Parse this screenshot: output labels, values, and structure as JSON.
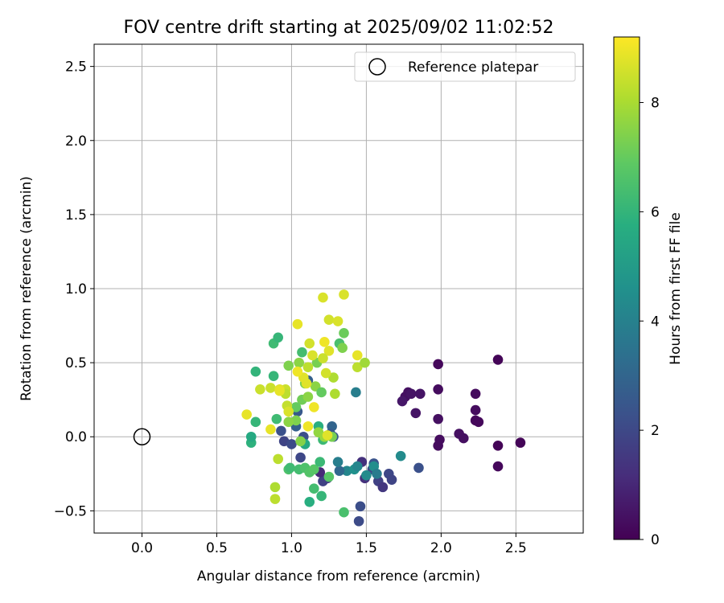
{
  "chart_data": {
    "type": "scatter",
    "title": "FOV centre drift starting at 2025/09/02 11:02:52",
    "xlabel": "Angular distance from reference (arcmin)",
    "ylabel": "Rotation from reference (arcmin)",
    "xlim": [
      -0.32,
      2.95
    ],
    "ylim": [
      -0.65,
      2.65
    ],
    "xticks": [
      "0.0",
      "0.5",
      "1.0",
      "1.5",
      "2.0",
      "2.5"
    ],
    "xtick_values": [
      0.0,
      0.5,
      1.0,
      1.5,
      2.0,
      2.5
    ],
    "yticks": [
      "−0.5",
      "0.0",
      "0.5",
      "1.0",
      "1.5",
      "2.0",
      "2.5"
    ],
    "ytick_values": [
      -0.5,
      0.0,
      0.5,
      1.0,
      1.5,
      2.0,
      2.5
    ],
    "grid": true,
    "legend": {
      "label": "Reference platepar",
      "placement": "top-right"
    },
    "reference_point": {
      "x": 0.0,
      "y": 0.0
    },
    "colorbar": {
      "label": "Hours from first FF file",
      "colormap": "viridis",
      "range": [
        0,
        9.2
      ],
      "ticks": [
        "0",
        "2",
        "4",
        "6",
        "8"
      ],
      "tick_values": [
        0,
        2,
        4,
        6,
        8
      ]
    },
    "points": [
      {
        "x": 2.38,
        "y": 0.52,
        "h": 0.1
      },
      {
        "x": 1.98,
        "y": 0.49,
        "h": 0.2
      },
      {
        "x": 1.98,
        "y": 0.32,
        "h": 0.3
      },
      {
        "x": 2.23,
        "y": 0.29,
        "h": 0.3
      },
      {
        "x": 1.78,
        "y": 0.3,
        "h": 0.4
      },
      {
        "x": 1.76,
        "y": 0.27,
        "h": 0.4
      },
      {
        "x": 1.8,
        "y": 0.29,
        "h": 0.5
      },
      {
        "x": 1.86,
        "y": 0.29,
        "h": 0.5
      },
      {
        "x": 1.74,
        "y": 0.24,
        "h": 0.6
      },
      {
        "x": 1.83,
        "y": 0.16,
        "h": 0.5
      },
      {
        "x": 2.23,
        "y": 0.18,
        "h": 0.3
      },
      {
        "x": 1.98,
        "y": 0.12,
        "h": 0.4
      },
      {
        "x": 2.23,
        "y": 0.11,
        "h": 0.2
      },
      {
        "x": 2.25,
        "y": 0.1,
        "h": 0.2
      },
      {
        "x": 2.12,
        "y": 0.02,
        "h": 0.4
      },
      {
        "x": 2.15,
        "y": -0.01,
        "h": 0.4
      },
      {
        "x": 1.99,
        "y": -0.02,
        "h": 0.3
      },
      {
        "x": 1.98,
        "y": -0.06,
        "h": 0.3
      },
      {
        "x": 2.38,
        "y": -0.06,
        "h": 0.1
      },
      {
        "x": 2.53,
        "y": -0.04,
        "h": 0.1
      },
      {
        "x": 2.38,
        "y": -0.2,
        "h": 0.2
      },
      {
        "x": 1.85,
        "y": -0.21,
        "h": 2.3
      },
      {
        "x": 1.65,
        "y": -0.25,
        "h": 2.0
      },
      {
        "x": 1.67,
        "y": -0.29,
        "h": 1.9
      },
      {
        "x": 1.58,
        "y": -0.3,
        "h": 1.8
      },
      {
        "x": 1.61,
        "y": -0.34,
        "h": 1.5
      },
      {
        "x": 1.55,
        "y": -0.18,
        "h": 2.4
      },
      {
        "x": 1.47,
        "y": -0.17,
        "h": 1.3
      },
      {
        "x": 1.49,
        "y": -0.28,
        "h": 1.3
      },
      {
        "x": 1.54,
        "y": -0.22,
        "h": 2.1
      },
      {
        "x": 1.46,
        "y": -0.47,
        "h": 2.2
      },
      {
        "x": 1.45,
        "y": -0.57,
        "h": 2.1
      },
      {
        "x": 1.37,
        "y": -0.23,
        "h": 4.2
      },
      {
        "x": 1.32,
        "y": -0.23,
        "h": 3.1
      },
      {
        "x": 1.31,
        "y": -0.17,
        "h": 3.9
      },
      {
        "x": 1.42,
        "y": -0.22,
        "h": 4.6
      },
      {
        "x": 1.44,
        "y": -0.2,
        "h": 4.2
      },
      {
        "x": 1.5,
        "y": -0.26,
        "h": 4.4
      },
      {
        "x": 1.55,
        "y": -0.2,
        "h": 4.5
      },
      {
        "x": 1.57,
        "y": -0.25,
        "h": 3.8
      },
      {
        "x": 1.73,
        "y": -0.13,
        "h": 4.4
      },
      {
        "x": 1.24,
        "y": -0.28,
        "h": 1.6
      },
      {
        "x": 1.21,
        "y": -0.3,
        "h": 1.8
      },
      {
        "x": 1.19,
        "y": -0.24,
        "h": 1.1
      },
      {
        "x": 1.43,
        "y": 0.3,
        "h": 3.9
      },
      {
        "x": 1.27,
        "y": 0.07,
        "h": 3.0
      },
      {
        "x": 1.26,
        "y": 0.02,
        "h": 2.5
      },
      {
        "x": 1.28,
        "y": 0.0,
        "h": 2.6
      },
      {
        "x": 1.08,
        "y": 0.0,
        "h": 2.2
      },
      {
        "x": 1.04,
        "y": 0.17,
        "h": 2.6
      },
      {
        "x": 1.03,
        "y": 0.07,
        "h": 2.8
      },
      {
        "x": 0.93,
        "y": 0.04,
        "h": 2.3
      },
      {
        "x": 0.95,
        "y": -0.03,
        "h": 1.9
      },
      {
        "x": 1.0,
        "y": -0.05,
        "h": 2.1
      },
      {
        "x": 1.06,
        "y": -0.14,
        "h": 2.0
      },
      {
        "x": 1.11,
        "y": 0.38,
        "h": 2.8
      },
      {
        "x": 1.18,
        "y": 0.07,
        "h": 5.8
      },
      {
        "x": 1.21,
        "y": -0.02,
        "h": 6.2
      },
      {
        "x": 1.09,
        "y": -0.05,
        "h": 5.6
      },
      {
        "x": 0.73,
        "y": -0.04,
        "h": 5.9
      },
      {
        "x": 0.73,
        "y": 0.0,
        "h": 5.6
      },
      {
        "x": 0.76,
        "y": 0.1,
        "h": 6.1
      },
      {
        "x": 0.76,
        "y": 0.44,
        "h": 6.0
      },
      {
        "x": 0.88,
        "y": 0.41,
        "h": 6.1
      },
      {
        "x": 0.88,
        "y": 0.63,
        "h": 6.3
      },
      {
        "x": 0.91,
        "y": 0.67,
        "h": 6.1
      },
      {
        "x": 1.07,
        "y": 0.57,
        "h": 6.4
      },
      {
        "x": 1.32,
        "y": 0.63,
        "h": 6.5
      },
      {
        "x": 1.35,
        "y": 0.7,
        "h": 7.1
      },
      {
        "x": 1.34,
        "y": 0.6,
        "h": 7.4
      },
      {
        "x": 1.17,
        "y": 0.5,
        "h": 7.3
      },
      {
        "x": 0.98,
        "y": 0.48,
        "h": 7.4
      },
      {
        "x": 1.05,
        "y": 0.5,
        "h": 7.6
      },
      {
        "x": 1.09,
        "y": 0.36,
        "h": 7.3
      },
      {
        "x": 1.16,
        "y": 0.34,
        "h": 7.6
      },
      {
        "x": 1.2,
        "y": 0.3,
        "h": 7.0
      },
      {
        "x": 1.07,
        "y": 0.25,
        "h": 7.2
      },
      {
        "x": 1.11,
        "y": 0.27,
        "h": 7.6
      },
      {
        "x": 1.03,
        "y": 0.2,
        "h": 7.0
      },
      {
        "x": 1.03,
        "y": 0.11,
        "h": 7.4
      },
      {
        "x": 0.98,
        "y": 0.1,
        "h": 7.6
      },
      {
        "x": 0.9,
        "y": 0.12,
        "h": 6.3
      },
      {
        "x": 1.06,
        "y": -0.03,
        "h": 7.5
      },
      {
        "x": 1.18,
        "y": 0.03,
        "h": 7.7
      },
      {
        "x": 1.22,
        "y": 0.0,
        "h": 7.8
      },
      {
        "x": 1.27,
        "y": 0.0,
        "h": 7.3
      },
      {
        "x": 0.98,
        "y": -0.22,
        "h": 6.6
      },
      {
        "x": 0.99,
        "y": -0.21,
        "h": 6.3
      },
      {
        "x": 1.05,
        "y": -0.22,
        "h": 6.4
      },
      {
        "x": 1.09,
        "y": -0.21,
        "h": 6.6
      },
      {
        "x": 1.12,
        "y": -0.24,
        "h": 6.7
      },
      {
        "x": 1.15,
        "y": -0.22,
        "h": 6.8
      },
      {
        "x": 1.19,
        "y": -0.17,
        "h": 6.2
      },
      {
        "x": 1.25,
        "y": -0.27,
        "h": 6.8
      },
      {
        "x": 1.12,
        "y": -0.44,
        "h": 5.8
      },
      {
        "x": 1.2,
        "y": -0.4,
        "h": 6.1
      },
      {
        "x": 1.15,
        "y": -0.35,
        "h": 6.4
      },
      {
        "x": 1.35,
        "y": -0.51,
        "h": 6.5
      },
      {
        "x": 0.91,
        "y": -0.15,
        "h": 8.3
      },
      {
        "x": 0.89,
        "y": -0.34,
        "h": 8.1
      },
      {
        "x": 0.89,
        "y": -0.42,
        "h": 8.3
      },
      {
        "x": 0.86,
        "y": 0.33,
        "h": 8.5
      },
      {
        "x": 0.79,
        "y": 0.32,
        "h": 8.5
      },
      {
        "x": 0.96,
        "y": 0.32,
        "h": 8.5
      },
      {
        "x": 0.96,
        "y": 0.29,
        "h": 8.3
      },
      {
        "x": 0.97,
        "y": 0.21,
        "h": 8.4
      },
      {
        "x": 0.98,
        "y": 0.17,
        "h": 8.7
      },
      {
        "x": 1.11,
        "y": 0.47,
        "h": 8.3
      },
      {
        "x": 1.12,
        "y": 0.63,
        "h": 8.6
      },
      {
        "x": 1.04,
        "y": 0.76,
        "h": 8.9
      },
      {
        "x": 1.21,
        "y": 0.94,
        "h": 8.7
      },
      {
        "x": 1.35,
        "y": 0.96,
        "h": 8.7
      },
      {
        "x": 1.25,
        "y": 0.79,
        "h": 8.6
      },
      {
        "x": 1.31,
        "y": 0.78,
        "h": 8.7
      },
      {
        "x": 1.22,
        "y": 0.64,
        "h": 9.0
      },
      {
        "x": 1.25,
        "y": 0.58,
        "h": 8.8
      },
      {
        "x": 1.14,
        "y": 0.55,
        "h": 8.7
      },
      {
        "x": 1.21,
        "y": 0.53,
        "h": 8.5
      },
      {
        "x": 1.44,
        "y": 0.55,
        "h": 8.9
      },
      {
        "x": 1.44,
        "y": 0.47,
        "h": 8.3
      },
      {
        "x": 1.49,
        "y": 0.5,
        "h": 7.9
      },
      {
        "x": 1.28,
        "y": 0.4,
        "h": 8.1
      },
      {
        "x": 1.23,
        "y": 0.43,
        "h": 8.6
      },
      {
        "x": 1.08,
        "y": 0.4,
        "h": 8.8
      },
      {
        "x": 1.04,
        "y": 0.44,
        "h": 9.0
      },
      {
        "x": 1.1,
        "y": 0.36,
        "h": 8.8
      },
      {
        "x": 0.92,
        "y": 0.32,
        "h": 8.8
      },
      {
        "x": 0.92,
        "y": 0.31,
        "h": 8.9
      },
      {
        "x": 1.29,
        "y": 0.29,
        "h": 8.1
      },
      {
        "x": 1.15,
        "y": 0.2,
        "h": 9.0
      },
      {
        "x": 0.7,
        "y": 0.15,
        "h": 8.9
      },
      {
        "x": 0.86,
        "y": 0.05,
        "h": 8.9
      },
      {
        "x": 1.11,
        "y": 0.07,
        "h": 9.0
      },
      {
        "x": 1.24,
        "y": 0.01,
        "h": 8.8
      }
    ]
  }
}
